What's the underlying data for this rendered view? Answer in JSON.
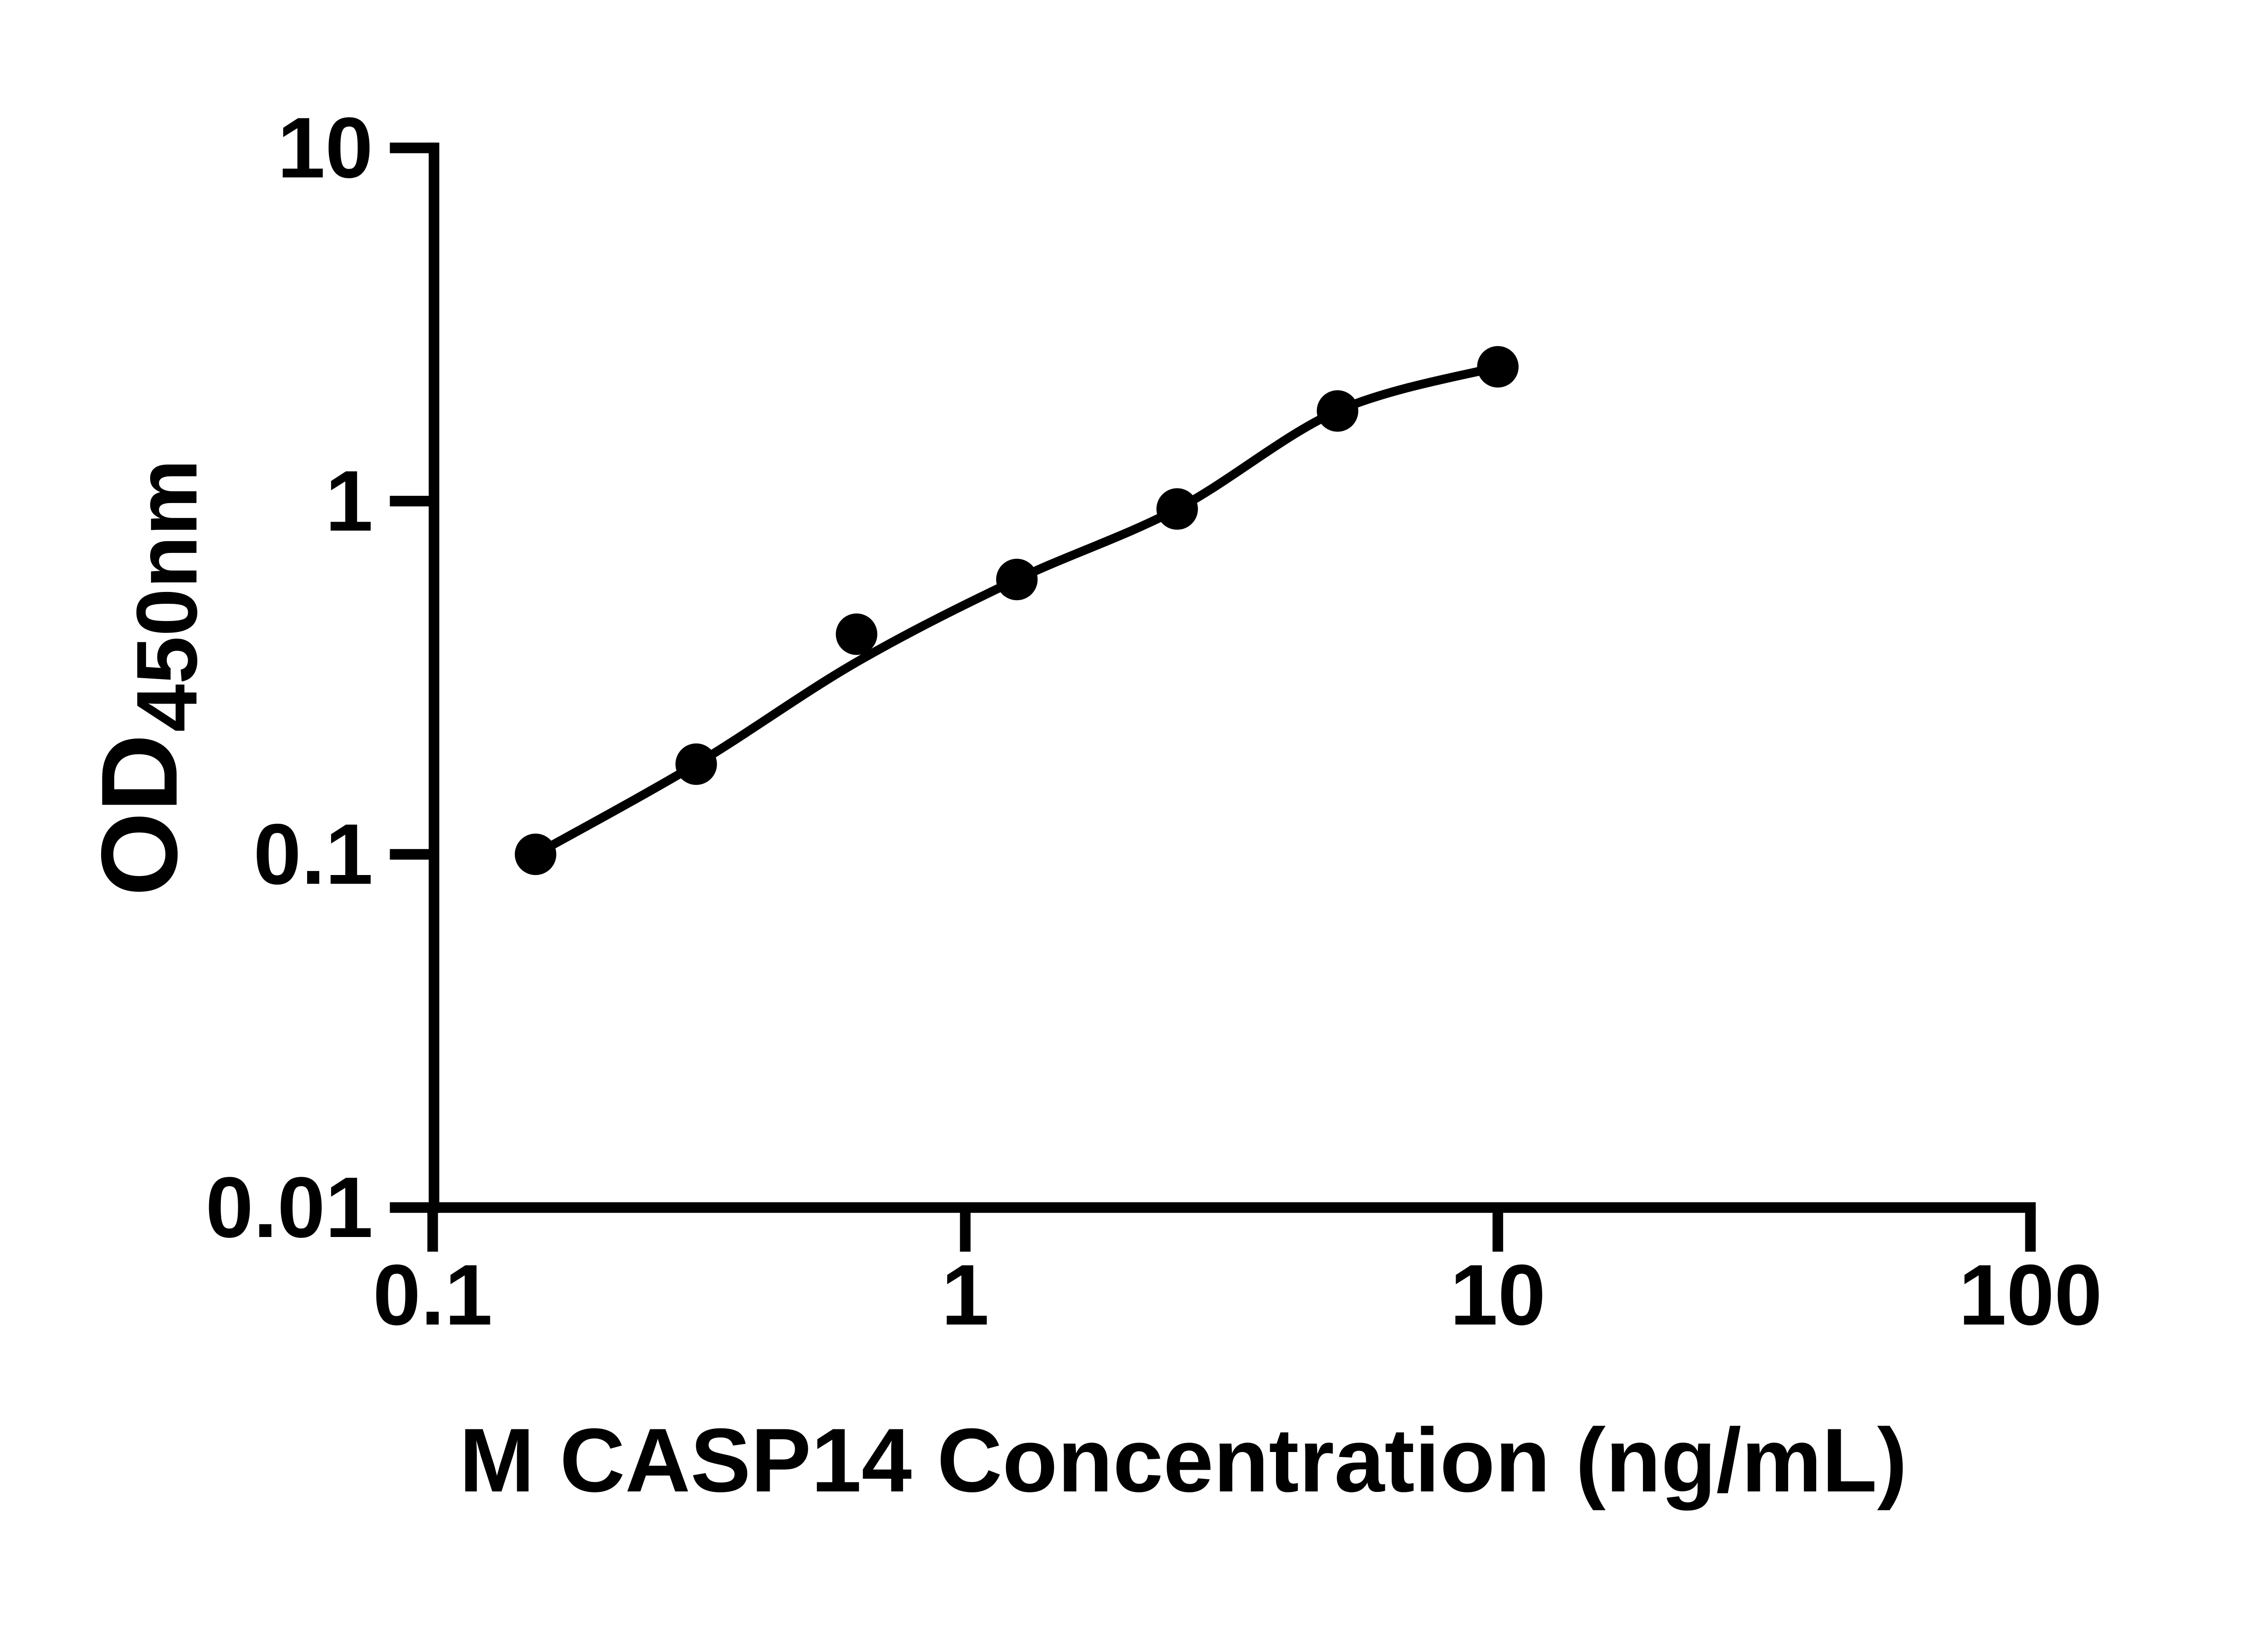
{
  "figure": {
    "background_color": "#ffffff",
    "foreground_color": "#000000"
  },
  "chart_data": {
    "type": "scatter",
    "title": "",
    "xlabel": "M CASP14 Concentration (ng/mL)",
    "ylabel_main": "OD",
    "ylabel_sub": "450nm",
    "x_scale": "log",
    "y_scale": "log",
    "xlim": [
      0.1,
      100
    ],
    "ylim": [
      0.01,
      10
    ],
    "x_tick_values": [
      0.1,
      1,
      10,
      100
    ],
    "x_tick_labels": [
      "0.1",
      "1",
      "10",
      "100"
    ],
    "y_tick_values": [
      0.01,
      0.1,
      1,
      10
    ],
    "y_tick_labels": [
      "0.01",
      "0.1",
      "1",
      "10"
    ],
    "grid": false,
    "legend": null,
    "marker_color": "#000000",
    "line_color": "#000000",
    "points": {
      "x": [
        0.156,
        0.3125,
        0.625,
        1.25,
        2.5,
        5,
        10
      ],
      "y": [
        0.1,
        0.18,
        0.42,
        0.6,
        0.95,
        1.8,
        2.4
      ]
    },
    "fit_curve": {
      "x": [
        0.156,
        0.3125,
        0.625,
        1.25,
        2.5,
        5,
        10
      ],
      "y": [
        0.1,
        0.18,
        0.35,
        0.6,
        0.95,
        1.8,
        2.4
      ]
    }
  }
}
